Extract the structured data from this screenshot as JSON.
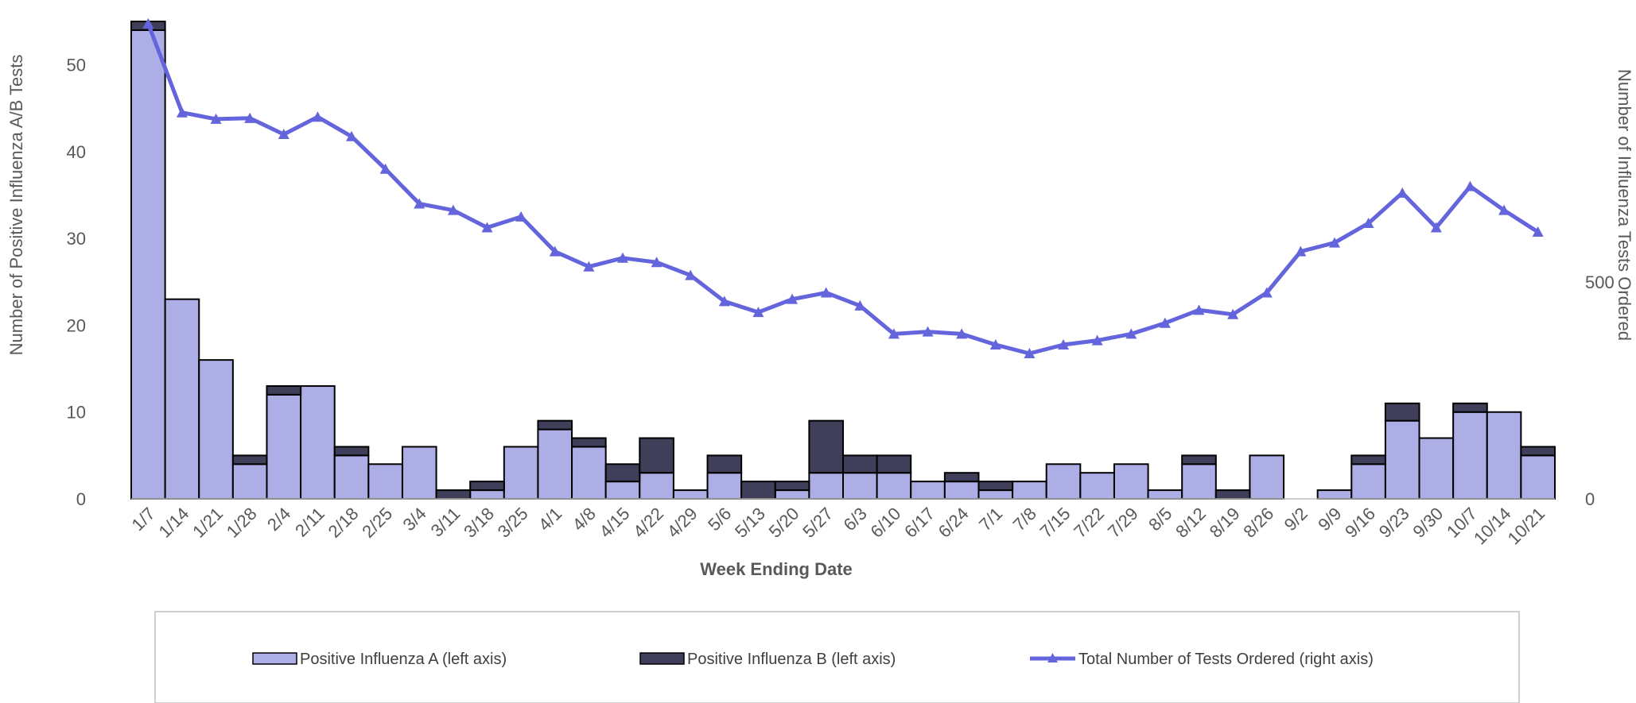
{
  "chart_data": {
    "type": "bar",
    "categories": [
      "1/7",
      "1/14",
      "1/21",
      "1/28",
      "2/4",
      "2/11",
      "2/18",
      "2/25",
      "3/4",
      "3/11",
      "3/18",
      "3/25",
      "4/1",
      "4/8",
      "4/15",
      "4/22",
      "4/29",
      "5/6",
      "5/13",
      "5/20",
      "5/27",
      "6/3",
      "6/10",
      "6/17",
      "6/24",
      "7/1",
      "7/8",
      "7/15",
      "7/22",
      "7/29",
      "8/5",
      "8/12",
      "8/19",
      "8/26",
      "9/2",
      "9/9",
      "9/16",
      "9/23",
      "9/30",
      "10/7",
      "10/14",
      "10/21"
    ],
    "series": [
      {
        "name": "Positive Influenza A (left axis)",
        "type": "bar",
        "axis": "left",
        "color": "#aeaee6",
        "values": [
          54,
          23,
          16,
          4,
          12,
          13,
          5,
          4,
          6,
          0,
          1,
          6,
          8,
          6,
          2,
          3,
          1,
          3,
          0,
          1,
          3,
          3,
          3,
          2,
          2,
          1,
          2,
          4,
          3,
          4,
          1,
          4,
          0,
          5,
          0,
          1,
          4,
          9,
          7,
          10,
          10,
          5
        ]
      },
      {
        "name": "Positive Influenza B (left axis)",
        "type": "bar",
        "axis": "left",
        "color": "#3f3f5a",
        "values": [
          1,
          0,
          0,
          1,
          1,
          0,
          1,
          0,
          0,
          1,
          1,
          0,
          1,
          1,
          2,
          4,
          0,
          2,
          2,
          1,
          6,
          2,
          2,
          0,
          1,
          1,
          0,
          0,
          0,
          0,
          0,
          1,
          1,
          0,
          0,
          0,
          1,
          2,
          0,
          1,
          0,
          1
        ]
      },
      {
        "name": "Total Number of Tests Ordered (right axis)",
        "type": "line",
        "axis": "right",
        "color": "#6464dc",
        "values": [
          1095,
          890,
          875,
          877,
          840,
          880,
          835,
          760,
          680,
          665,
          625,
          650,
          570,
          535,
          555,
          545,
          515,
          455,
          430,
          460,
          475,
          445,
          380,
          385,
          380,
          355,
          335,
          355,
          365,
          380,
          405,
          435,
          425,
          475,
          570,
          590,
          635,
          705,
          625,
          720,
          665,
          615
        ]
      }
    ],
    "xlabel": "Week Ending Date",
    "ylabel_left": "Number of Positive Influenza A/B Tests",
    "ylabel_right": "Number of Influenza Tests Ordered",
    "ylim_left": [
      0,
      55
    ],
    "yticks_left": [
      "0",
      "10",
      "20",
      "30",
      "40",
      "50"
    ],
    "ylim_right": [
      0,
      1100
    ],
    "yticks_right": [
      "0",
      "500"
    ],
    "grid": false,
    "legend_position": "bottom"
  }
}
